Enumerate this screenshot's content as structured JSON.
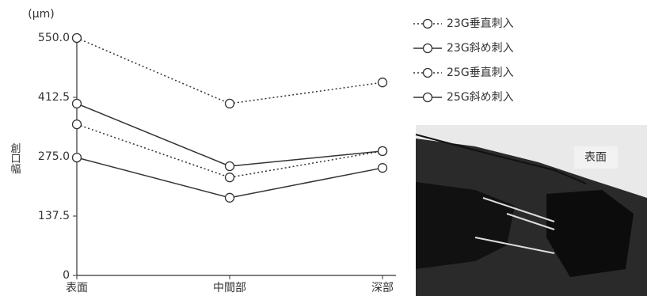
{
  "chart_data": {
    "type": "line",
    "unit": "(μm)",
    "y_label": "創口幅",
    "categories": [
      "表面",
      "中間部",
      "深部"
    ],
    "series": [
      {
        "name": "23G垂直刺入",
        "color": "#333333",
        "style": "dotted",
        "values": [
          550,
          398,
          447
        ]
      },
      {
        "name": "23G斜め刺入",
        "color": "#333333",
        "style": "solid",
        "values": [
          398,
          253,
          288
        ]
      },
      {
        "name": "25G垂直刺入",
        "color": "#333333",
        "style": "dotted",
        "values": [
          350,
          227,
          288
        ]
      },
      {
        "name": "25G斜め刺入",
        "color": "#333333",
        "style": "solid",
        "values": [
          273,
          180,
          249
        ]
      }
    ],
    "ylim": [
      0,
      550
    ],
    "yticks": [
      0,
      {
        "value": 137.5,
        "label": "137.5"
      },
      {
        "value": 275,
        "label": "275.0"
      },
      {
        "value": 412.5,
        "label": "412.5"
      },
      {
        "value": 550,
        "label": "550.0"
      }
    ],
    "photo_label": "表面"
  }
}
